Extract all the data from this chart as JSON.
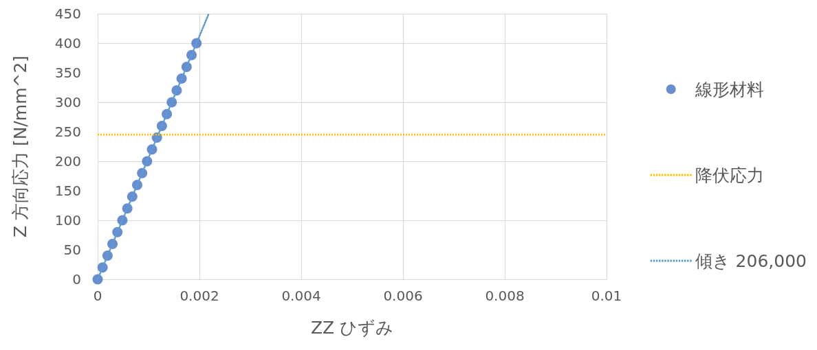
{
  "chart_data": {
    "type": "scatter",
    "xlabel": "ZZ ひずみ",
    "ylabel": "Z 方向応力 [N/mm^2]",
    "xlim": [
      0,
      0.01
    ],
    "xticks": [
      0,
      0.002,
      0.004,
      0.006,
      0.008,
      0.01
    ],
    "ylim": [
      0,
      450
    ],
    "yticks": [
      0,
      50,
      100,
      150,
      200,
      250,
      300,
      350,
      400,
      450
    ],
    "grid": true,
    "legend": "right",
    "marker": "circle",
    "series": [
      {
        "name": "線形材料",
        "color": "#4472c4",
        "x": [
          0,
          9.7e-05,
          0.000194,
          0.000291,
          0.000388,
          0.000485,
          0.000583,
          0.00068,
          0.000777,
          0.000874,
          0.000971,
          0.001068,
          0.001165,
          0.001262,
          0.001359,
          0.001456,
          0.001553,
          0.00165,
          0.001748,
          0.001845,
          0.001942
        ],
        "values": [
          0,
          20,
          40,
          60,
          80,
          100,
          120,
          140,
          160,
          180,
          200,
          220,
          240,
          260,
          280,
          300,
          320,
          340,
          360,
          380,
          400
        ]
      },
      {
        "name": "傾き 206,000",
        "type": "line",
        "color": "#5b9bd5",
        "line_style": "dotted",
        "marker": "none",
        "x": [
          0,
          0.002184
        ],
        "values": [
          0,
          450
        ]
      }
    ],
    "ref_lines": [
      {
        "axis": "y",
        "value": 245,
        "label": "降伏応力",
        "color": "#ffc000",
        "line_style": "dotted"
      }
    ]
  }
}
